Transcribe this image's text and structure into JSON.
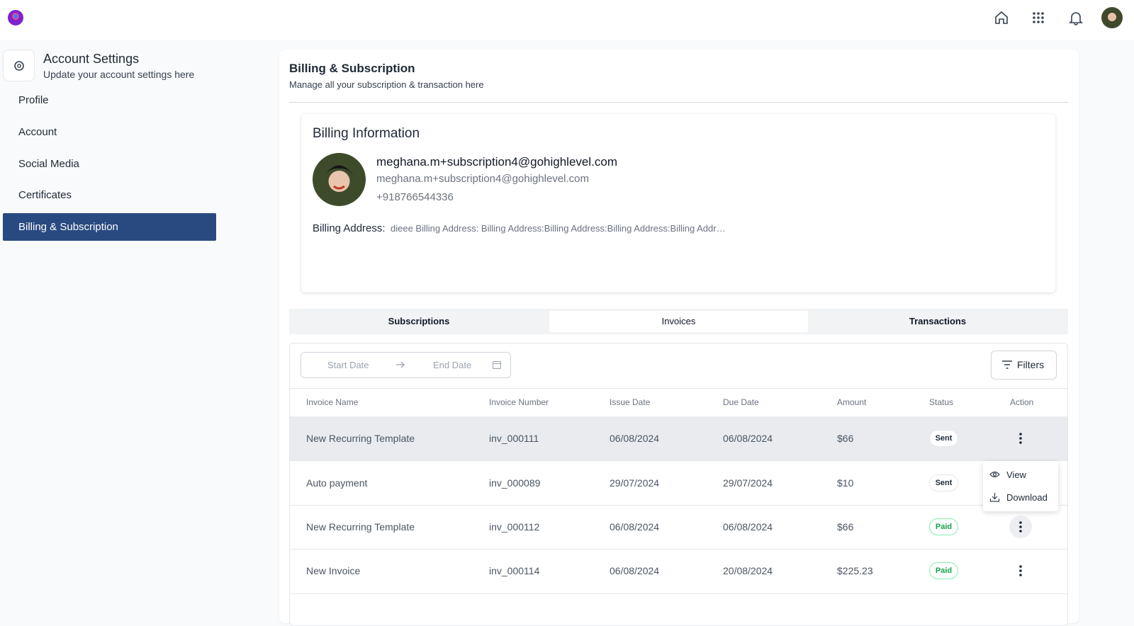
{
  "sidebar": {
    "title": "Account Settings",
    "subtitle": "Update your account settings here",
    "items": [
      "Profile",
      "Account",
      "Social Media",
      "Certificates",
      "Billing & Subscription"
    ]
  },
  "main": {
    "title": "Billing & Subscription",
    "subtitle": "Manage all your subscription & transaction here"
  },
  "billing": {
    "title": "Billing Information",
    "primary_email": "meghana.m+subscription4@gohighlevel.com",
    "email": "meghana.m+subscription4@gohighlevel.com",
    "phone": "+918766544336",
    "address_label": "Billing Address:",
    "address": "dieee Billing Address: Billing Address:Billing Address:Billing Address:Billing Addr…"
  },
  "tabs": [
    "Subscriptions",
    "Invoices",
    "Transactions"
  ],
  "date_range": {
    "start": "Start Date",
    "end": "End Date"
  },
  "filters": "Filters",
  "table": {
    "columns": [
      "Invoice Name",
      "Invoice Number",
      "Issue Date",
      "Due Date",
      "Amount",
      "Status",
      "Action"
    ],
    "rows": [
      [
        "New Recurring Template",
        "inv_000111",
        "06/08/2024",
        "06/08/2024",
        "$66",
        "Sent"
      ],
      [
        "Auto payment",
        "inv_000089",
        "29/07/2024",
        "29/07/2024",
        "$10",
        "Sent"
      ],
      [
        "New Recurring Template",
        "inv_000112",
        "06/08/2024",
        "06/08/2024",
        "$66",
        "Paid"
      ],
      [
        "New Invoice",
        "inv_000114",
        "06/08/2024",
        "20/08/2024",
        "$225.23",
        "Paid"
      ]
    ]
  },
  "menu": [
    "View",
    "Download"
  ]
}
